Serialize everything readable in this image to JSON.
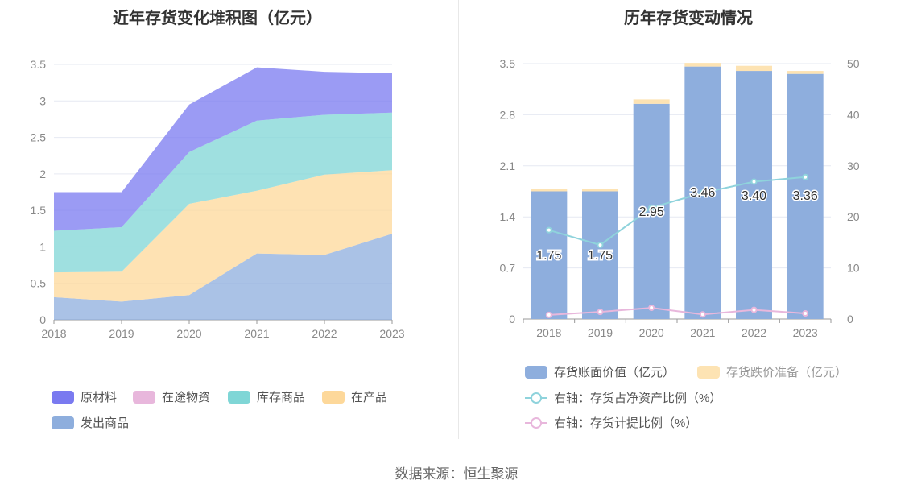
{
  "source_text": "数据来源：恒生聚源",
  "chart_data": [
    {
      "type": "area",
      "title": "近年存货变化堆积图（亿元）",
      "x": [
        "2018",
        "2019",
        "2020",
        "2021",
        "2022",
        "2023"
      ],
      "ylim": [
        0,
        3.5
      ],
      "yticks": [
        "0",
        "0.5",
        "1",
        "1.5",
        "2",
        "2.5",
        "3",
        "3.5"
      ],
      "stacked": true,
      "grid": true,
      "legend_position": "bottom",
      "series": [
        {
          "name": "发出商品",
          "color": "#8eaedd",
          "values": [
            0.31,
            0.25,
            0.34,
            0.91,
            0.89,
            1.18
          ]
        },
        {
          "name": "在产品",
          "color": "#fdd89a",
          "values": [
            0.34,
            0.41,
            1.25,
            0.86,
            1.1,
            0.87
          ]
        },
        {
          "name": "库存商品",
          "color": "#7fd6d6",
          "values": [
            0.57,
            0.61,
            0.71,
            0.96,
            0.82,
            0.79
          ]
        },
        {
          "name": "在途物资",
          "color": "#e8b7dc",
          "values": [
            0,
            0,
            0,
            0,
            0,
            0
          ]
        },
        {
          "name": "原材料",
          "color": "#7a7af0",
          "values": [
            0.53,
            0.48,
            0.65,
            0.73,
            0.59,
            0.54
          ]
        }
      ],
      "legend": [
        "原材料",
        "在途物资",
        "库存商品",
        "在产品",
        "发出商品"
      ]
    },
    {
      "type": "bar",
      "title": "历年存货变动情况",
      "categories": [
        "2018",
        "2019",
        "2020",
        "2021",
        "2022",
        "2023"
      ],
      "ylim": [
        0,
        3.5
      ],
      "yticks": [
        "0",
        "0.7",
        "1.4",
        "2.1",
        "2.8",
        "3.5"
      ],
      "y2lim": [
        0,
        50
      ],
      "y2ticks": [
        "0",
        "10",
        "20",
        "30",
        "40",
        "50"
      ],
      "grid": true,
      "legend_position": "bottom",
      "series": [
        {
          "name": "存货账面价值（亿元）",
          "kind": "bar",
          "color": "#8eaedd",
          "axis": "left",
          "values": [
            1.75,
            1.75,
            2.95,
            3.46,
            3.4,
            3.36
          ],
          "labels": [
            "1.75",
            "1.75",
            "2.95",
            "3.46",
            "3.40",
            "3.36"
          ]
        },
        {
          "name": "存货跌价准备（亿元）",
          "kind": "bar",
          "color": "#fde3b3",
          "axis": "left",
          "values": [
            0.03,
            0.03,
            0.06,
            0.05,
            0.07,
            0.04
          ]
        },
        {
          "name": "右轴：存货占净资产比例（%）",
          "kind": "line",
          "color": "#8fd3dc",
          "axis": "right",
          "values": [
            17.4,
            14.5,
            21.8,
            24.7,
            26.9,
            27.8
          ]
        },
        {
          "name": "右轴：存货计提比例（%）",
          "kind": "line",
          "color": "#e8b7dc",
          "axis": "right",
          "values": [
            0.8,
            1.4,
            2.2,
            0.9,
            1.8,
            1.1
          ]
        }
      ]
    }
  ]
}
